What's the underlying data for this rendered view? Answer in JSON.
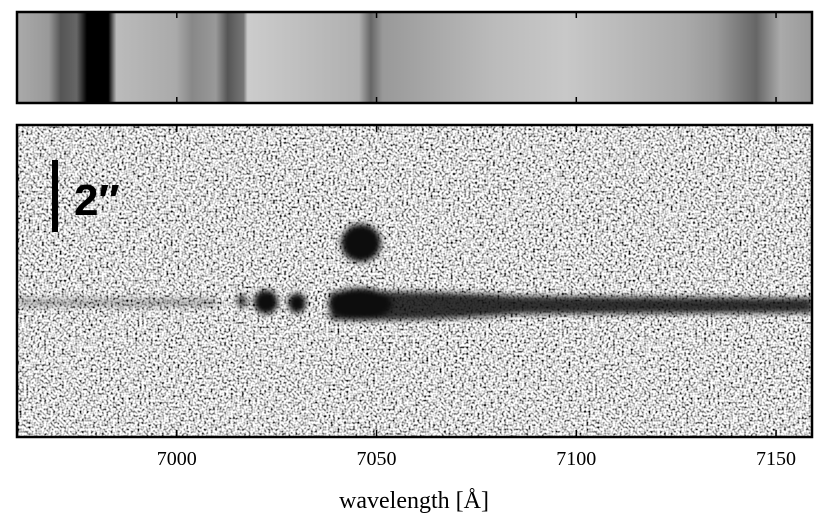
{
  "chart_data": {
    "type": "spectrum",
    "xlabel": "wavelength [Å]",
    "annotation": "2″",
    "xlim": [
      6960,
      7159
    ],
    "xticks": [
      7000,
      7050,
      7100,
      7150
    ]
  }
}
